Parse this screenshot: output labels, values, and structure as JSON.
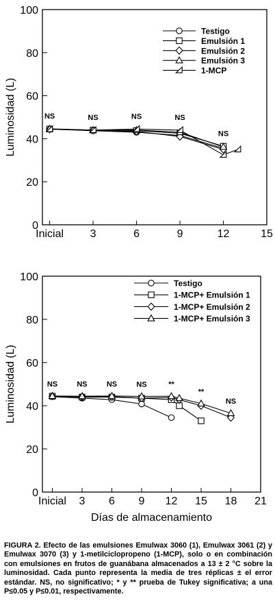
{
  "chart_data": [
    {
      "type": "line",
      "ylabel": "Luminosidad (L)",
      "xlabel": "",
      "ylim": [
        0,
        100
      ],
      "xlim": [
        -0.5,
        15
      ],
      "yticks": [
        0,
        20,
        40,
        60,
        80,
        100
      ],
      "xticks": [
        {
          "value": 0,
          "label": "Inicial"
        },
        {
          "value": 3,
          "label": "3"
        },
        {
          "value": 6,
          "label": "6"
        },
        {
          "value": 9,
          "label": "9"
        },
        {
          "value": 12,
          "label": "12"
        },
        {
          "value": 15,
          "label": "15"
        }
      ],
      "legend_position": "top-right",
      "significance": [
        {
          "x": 0,
          "label": "NS"
        },
        {
          "x": 3,
          "label": "NS"
        },
        {
          "x": 6,
          "label": "NS"
        },
        {
          "x": 9,
          "label": "NS"
        },
        {
          "x": 12,
          "label": "NS"
        }
      ],
      "series": [
        {
          "name": "Testigo",
          "marker": "circle",
          "x": [
            0,
            3,
            6,
            9,
            12
          ],
          "y": [
            44.5,
            43.7,
            43.0,
            41.5,
            35.5
          ]
        },
        {
          "name": "Emulsión 1",
          "marker": "square",
          "x": [
            0,
            3,
            6,
            9,
            12
          ],
          "y": [
            44.5,
            44.0,
            43.8,
            42.5,
            36.5
          ]
        },
        {
          "name": "Emulsión 2",
          "marker": "diamond",
          "x": [
            0,
            3,
            6,
            9,
            12
          ],
          "y": [
            44.4,
            43.8,
            43.4,
            41.0,
            35.0
          ]
        },
        {
          "name": "Emulsión 3",
          "marker": "triangle",
          "x": [
            0,
            3,
            6,
            9,
            12
          ],
          "y": [
            44.6,
            44.0,
            44.0,
            43.0,
            36.2
          ]
        },
        {
          "name": "1-MCP",
          "marker": "halftriangle",
          "x": [
            0,
            3,
            6,
            9,
            12,
            13
          ],
          "y": [
            44.4,
            44.0,
            44.5,
            44.0,
            32.5,
            35.0
          ]
        }
      ]
    },
    {
      "type": "line",
      "ylabel": "Luminosidad (L)",
      "xlabel": "Días de almacenamiento",
      "ylim": [
        0,
        100
      ],
      "xlim": [
        -1,
        21
      ],
      "yticks": [
        0,
        20,
        40,
        60,
        80,
        100
      ],
      "xticks": [
        {
          "value": 0,
          "label": "Inicial"
        },
        {
          "value": 3,
          "label": "3"
        },
        {
          "value": 6,
          "label": "6"
        },
        {
          "value": 9,
          "label": "9"
        },
        {
          "value": 12,
          "label": "12"
        },
        {
          "value": 15,
          "label": "15"
        },
        {
          "value": 18,
          "label": "18"
        },
        {
          "value": 21,
          "label": "21"
        }
      ],
      "legend_position": "top-right",
      "significance": [
        {
          "x": 0,
          "label": "NS"
        },
        {
          "x": 3,
          "label": "NS"
        },
        {
          "x": 6,
          "label": "NS"
        },
        {
          "x": 9,
          "label": "NS"
        },
        {
          "x": 12,
          "label": "**"
        },
        {
          "x": 15,
          "label": "**"
        },
        {
          "x": 18,
          "label": "NS"
        }
      ],
      "series": [
        {
          "name": "Testigo",
          "marker": "circle",
          "x": [
            0,
            3,
            6,
            9,
            12
          ],
          "y": [
            44.2,
            43.5,
            42.8,
            40.8,
            34.5
          ]
        },
        {
          "name": "1-MCP+ Emulsión 1",
          "marker": "square",
          "x": [
            0,
            3,
            6,
            9,
            12,
            12.8,
            15
          ],
          "y": [
            44.4,
            44.0,
            44.0,
            43.5,
            42.8,
            40.0,
            33.0
          ]
        },
        {
          "name": "1-MCP+ Emulsión 2",
          "marker": "diamond",
          "x": [
            0,
            3,
            6,
            9,
            12,
            12.8,
            15,
            18
          ],
          "y": [
            44.4,
            44.2,
            44.2,
            43.5,
            43.8,
            42.8,
            40.0,
            34.5
          ]
        },
        {
          "name": "1-MCP+ Emulsión 3",
          "marker": "triangle",
          "x": [
            0,
            3,
            6,
            9,
            12,
            12.8,
            15,
            18
          ],
          "y": [
            44.5,
            44.4,
            44.5,
            44.3,
            44.4,
            43.5,
            41.0,
            36.5
          ]
        }
      ]
    }
  ],
  "caption": {
    "text": "FIGURA 2. Efecto de las emulsiones Emulwax 3060 (1), Emulwax 3061 (2) y Emulwax 3070 (3) y 1-metilciclopropeno (1-MCP), solo o en combinación con emulsiones en frutos de guanábana almacenados a 13 ± 2 °C sobre la luminosidad. Cada punto representa la media de tres réplicas ± el error estándar. NS, no significativo; * y ** prueba de Tukey significativa; a una P≤0.05 y P≤0.01, respectivamente."
  }
}
